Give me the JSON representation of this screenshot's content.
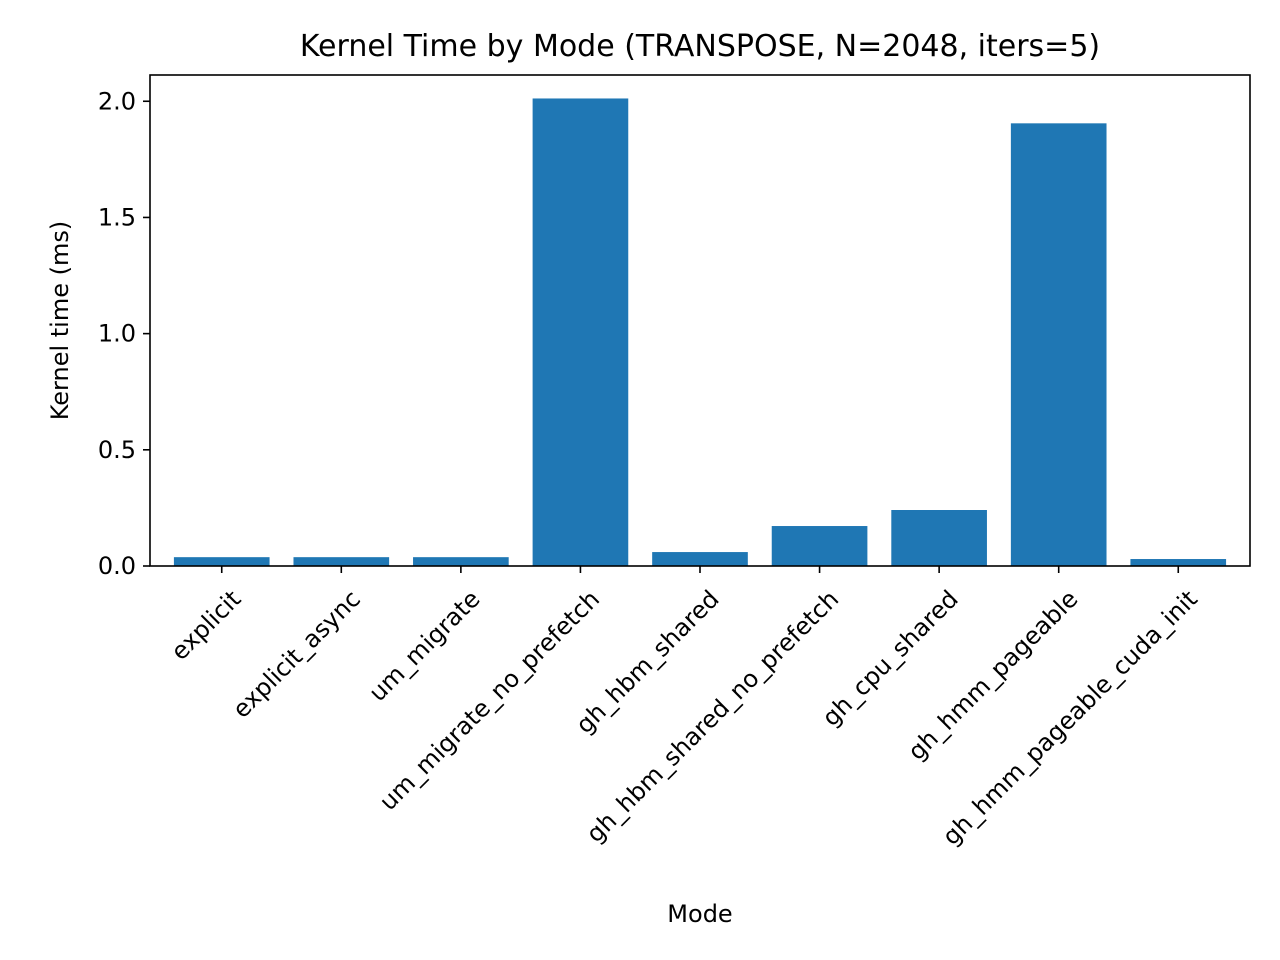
{
  "chart_data": {
    "type": "bar",
    "title": "Kernel Time by Mode (TRANSPOSE, N=2048, iters=5)",
    "xlabel": "Mode",
    "ylabel": "Kernel time (ms)",
    "categories": [
      "explicit",
      "explicit_async",
      "um_migrate",
      "um_migrate_no_prefetch",
      "gh_hbm_shared",
      "gh_hbm_shared_no_prefetch",
      "gh_cpu_shared",
      "gh_hmm_pageable",
      "gh_hmm_pageable_cuda_init"
    ],
    "values": [
      0.038,
      0.038,
      0.038,
      2.012,
      0.06,
      0.172,
      0.241,
      1.905,
      0.03
    ],
    "ylim": [
      0,
      2.113
    ],
    "yticks": [
      0.0,
      0.5,
      1.0,
      1.5,
      2.0
    ],
    "ytick_labels": [
      "0.0",
      "0.5",
      "1.0",
      "1.5",
      "2.0"
    ],
    "grid": false,
    "bar_color": "#1f77b4"
  }
}
